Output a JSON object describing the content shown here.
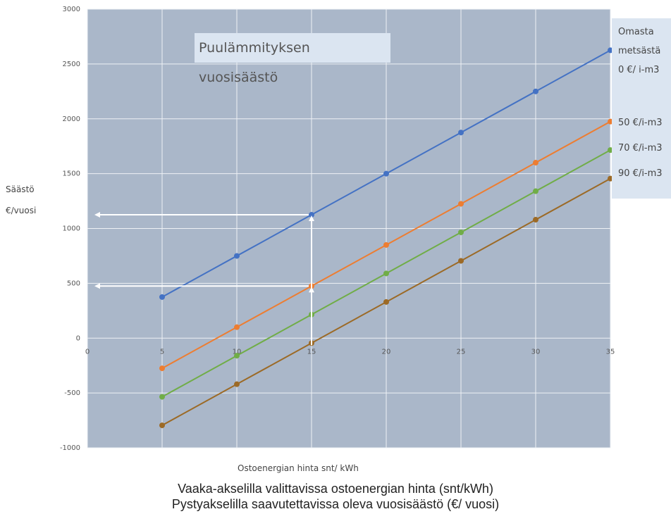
{
  "chart_data": {
    "type": "line",
    "title": "Puulämmityksen vuosisäästö",
    "xlabel": "Ostoenergian hinta snt/ kWh",
    "ylabel_lines": [
      "Säästö",
      "€/vuosi"
    ],
    "x_ticks": [
      "0",
      "5",
      "10",
      "15",
      "20",
      "25",
      "30",
      "35"
    ],
    "y_ticks": [
      "3000",
      "2500",
      "2000",
      "1500",
      "1000",
      "500",
      "0",
      "-500",
      "-1000"
    ],
    "xlim": [
      0,
      35
    ],
    "ylim": [
      -1000,
      3000
    ],
    "grid": true,
    "legend_position": "right",
    "x": [
      5,
      10,
      15,
      20,
      25,
      30,
      35
    ],
    "series": [
      {
        "legend_lines": [
          "Omasta",
          "metsästä",
          "0 €/ i-m3"
        ],
        "color": "#4472c4",
        "values": [
          375,
          750,
          1125,
          1500,
          1875,
          2250,
          2625
        ]
      },
      {
        "legend_lines": [
          "50 €/i-m3"
        ],
        "color": "#ed7d31",
        "values": [
          -275,
          100,
          475,
          850,
          1225,
          1600,
          1975
        ]
      },
      {
        "legend_lines": [
          "70 €/i-m3"
        ],
        "color": "#70ad47",
        "values": [
          -535,
          -160,
          215,
          590,
          965,
          1340,
          1715
        ]
      },
      {
        "legend_lines": [
          "90 €/i-m3"
        ],
        "color": "#9c6a26",
        "values": [
          -795,
          -420,
          -45,
          330,
          705,
          1080,
          1455
        ]
      }
    ],
    "annotations": {
      "vertical_arrow_x": 15,
      "horizontal_arrows_y": [
        1125,
        475
      ]
    }
  },
  "captions": [
    "Vaaka-akselilla valittavissa ostoenergian hinta (snt/kWh)",
    "Pystyakselilla saavutettavissa oleva vuosisäästö (€/ vuosi)"
  ]
}
